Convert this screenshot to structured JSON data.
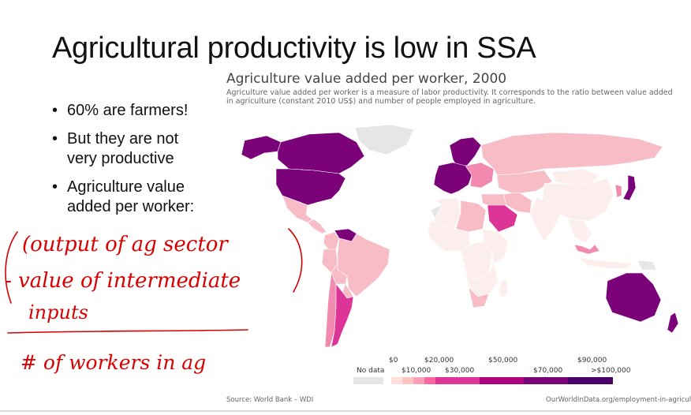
{
  "slide": {
    "title": "Agricultural productivity is low in SSA",
    "bullets": [
      "60% are farmers!",
      "But they are not very productive",
      "Agriculture value added per worker:"
    ]
  },
  "map": {
    "title": "Agriculture value added per worker, 2000",
    "subtitle": "Agriculture value added per worker is a measure of labor productivity. It corresponds to the ratio between value added in agriculture (constant 2010 US$) and number of people employed in agriculture.",
    "source": "Source: World Bank – WDI",
    "url": "OurWorldInData.org/employment-in-agricult",
    "legend": {
      "no_data": "No data",
      "ticks_top": [
        "$0",
        "$20,000",
        "$50,000",
        "$90,000"
      ],
      "ticks_bottom": [
        "$10,000",
        "$30,000",
        "$70,000",
        ">$100,000"
      ],
      "colors": [
        "#fde0dd",
        "#fcc5c0",
        "#fa9fb5",
        "#f768a1",
        "#dd3497",
        "#ae017e",
        "#7a0177",
        "#49006a"
      ]
    },
    "regions": [
      {
        "name": "United States",
        "bin": "$50,000"
      },
      {
        "name": "Canada",
        "bin": "$50,000"
      },
      {
        "name": "Alaska",
        "bin": "$50,000"
      },
      {
        "name": "Greenland",
        "bin": "No data"
      },
      {
        "name": "Mexico",
        "bin": "$10,000"
      },
      {
        "name": "Central America",
        "bin": "$10,000"
      },
      {
        "name": "Venezuela",
        "bin": "$50,000"
      },
      {
        "name": "Colombia",
        "bin": "$10,000"
      },
      {
        "name": "Peru",
        "bin": "$10,000"
      },
      {
        "name": "Brazil",
        "bin": "$10,000"
      },
      {
        "name": "Bolivia",
        "bin": "$10,000"
      },
      {
        "name": "Paraguay",
        "bin": "$10,000"
      },
      {
        "name": "Chile",
        "bin": "$20,000"
      },
      {
        "name": "Argentina",
        "bin": "$30,000"
      },
      {
        "name": "Scandinavia",
        "bin": "$50,000"
      },
      {
        "name": "Western Europe",
        "bin": "$50,000"
      },
      {
        "name": "Eastern Europe",
        "bin": "$20,000"
      },
      {
        "name": "Russia",
        "bin": "$10,000"
      },
      {
        "name": "Central Asia",
        "bin": "$10,000"
      },
      {
        "name": "China",
        "bin": "$0"
      },
      {
        "name": "Mongolia",
        "bin": "$0"
      },
      {
        "name": "India",
        "bin": "$0"
      },
      {
        "name": "Southeast Asia",
        "bin": "$0"
      },
      {
        "name": "Japan",
        "bin": "$50,000"
      },
      {
        "name": "Korea",
        "bin": "$20,000"
      },
      {
        "name": "Saudi Arabia",
        "bin": "$30,000"
      },
      {
        "name": "Middle East",
        "bin": "$10,000"
      },
      {
        "name": "Iran",
        "bin": "$10,000"
      },
      {
        "name": "North Africa",
        "bin": "$0"
      },
      {
        "name": "Libya",
        "bin": "$10,000"
      },
      {
        "name": "Western Sahara",
        "bin": "No data"
      },
      {
        "name": "West Africa",
        "bin": "$0"
      },
      {
        "name": "Central Africa",
        "bin": "$0"
      },
      {
        "name": "East Africa",
        "bin": "$0"
      },
      {
        "name": "Southern Africa",
        "bin": "$0"
      },
      {
        "name": "South Africa",
        "bin": "$10,000"
      },
      {
        "name": "Madagascar",
        "bin": "$0"
      },
      {
        "name": "Malaysia",
        "bin": "$20,000"
      },
      {
        "name": "Indonesia",
        "bin": "$0"
      },
      {
        "name": "Papua New Guinea",
        "bin": "No data"
      },
      {
        "name": "Australia",
        "bin": "$50,000"
      },
      {
        "name": "New Zealand",
        "bin": "$50,000"
      }
    ]
  },
  "annotation": {
    "line1": "(output of ag sector",
    "line2": "- value of intermediate",
    "line3": "inputs",
    "line4": "# of workers in ag"
  }
}
